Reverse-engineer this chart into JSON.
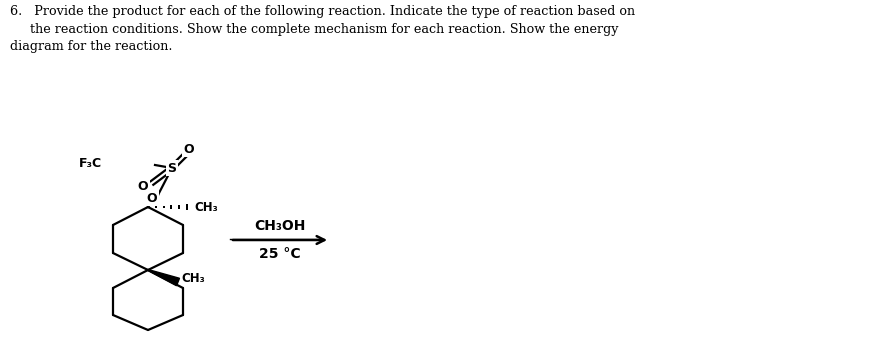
{
  "background_color": "#ffffff",
  "figsize": [
    8.77,
    3.45
  ],
  "dpi": 100,
  "header_line1": "6.   Provide the product for each of the following reaction. Indicate the type of reaction based on",
  "header_line2": "     the reaction conditions. Show the complete mechanism for each reaction. Show the energy",
  "header_line3": "diagram for the reaction.",
  "reagent_top": "CH₃OH",
  "reagent_bot": "25 °C",
  "label_f3c": "F₃C",
  "label_s": "S",
  "label_o_top": "O",
  "label_o_left": "O",
  "label_o_link": "O",
  "label_ch3_top": "CH₃",
  "label_ch3_bot": "CH₃",
  "lw": 1.6
}
